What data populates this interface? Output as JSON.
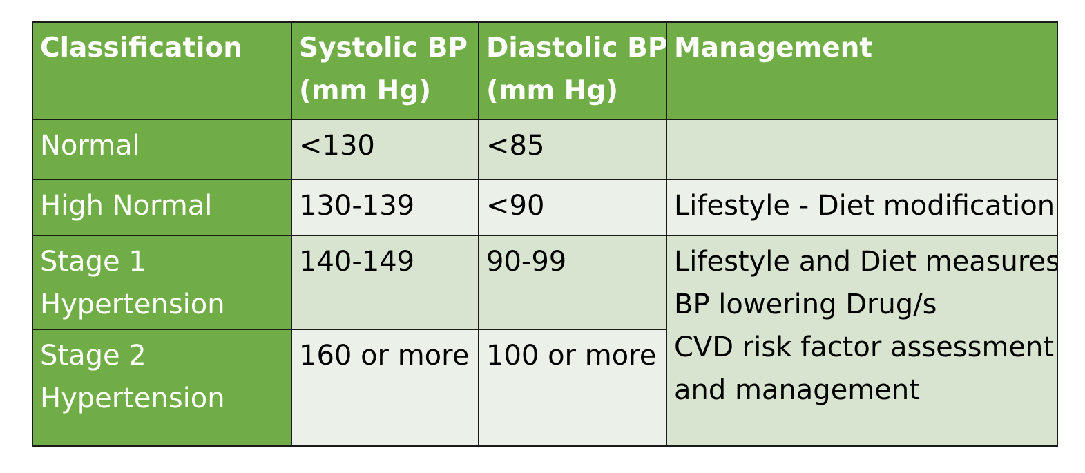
{
  "colors": {
    "header_bg": "#70ad47",
    "header_text": "#ffffff",
    "row_dark": "#d8e4d0",
    "row_light": "#ebf0e8",
    "border": "#1a1a1a"
  },
  "table": {
    "headers": {
      "classification": "Classification",
      "systolic_line1": "Systolic BP",
      "systolic_line2": "(mm Hg)",
      "diastolic_line1": "Diastolic BP",
      "diastolic_line2": "(mm Hg)",
      "management": "Management"
    },
    "rows": [
      {
        "classification": [
          "Normal"
        ],
        "systolic": "<130",
        "diastolic": "<85",
        "management": ""
      },
      {
        "classification": [
          "High Normal"
        ],
        "systolic": "130-139",
        "diastolic": "<90",
        "management": "Lifestyle - Diet modification"
      },
      {
        "classification": [
          "Stage 1",
          "Hypertension"
        ],
        "systolic": "140-149",
        "diastolic": "90-99"
      },
      {
        "classification": [
          "Stage 2",
          "Hypertension"
        ],
        "systolic": "160 or more",
        "diastolic": "100 or more"
      }
    ],
    "merged_management": [
      "Lifestyle and Diet measures",
      "BP lowering Drug/s",
      "CVD risk factor assessment",
      "and management"
    ]
  }
}
